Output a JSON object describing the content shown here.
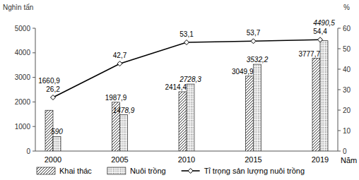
{
  "chart_data": {
    "type": "bar",
    "x_label": "Năm",
    "y_label": "Nghìn tấn",
    "y2_label": "%",
    "categories": [
      "2000",
      "2005",
      "2010",
      "2015",
      "2019"
    ],
    "ylim": [
      0,
      5000
    ],
    "yticks": [
      0,
      1000,
      2000,
      3000,
      4000,
      5000
    ],
    "y2lim": [
      0,
      60
    ],
    "y2ticks": [
      0,
      10,
      20,
      30,
      40,
      50,
      60
    ],
    "grid": false,
    "legend": "bottom",
    "data_labels": true,
    "series": [
      {
        "name": "Khai thác",
        "type": "bar",
        "color": "#000000",
        "values": [
          1660.9,
          1987.9,
          2414.4,
          3049.9,
          3777.7
        ],
        "value_labels": [
          "1660,9",
          "1987,9",
          "2414,4",
          "3049,9",
          "3777,7"
        ]
      },
      {
        "name": "Nuôi trồng",
        "type": "bar",
        "color": "#000000",
        "values": [
          590,
          1478.9,
          2728.3,
          3532.2,
          4490.5
        ],
        "value_labels": [
          "590",
          "1478,9",
          "2728,3",
          "3532,2",
          "4490,5"
        ]
      },
      {
        "name": "Tỉ trọng sản lượng nuôi trồng",
        "type": "line",
        "axis": "y2",
        "color": "#000000",
        "marker": "diamond",
        "values": [
          26.2,
          42.7,
          53.1,
          53.7,
          54.4
        ],
        "value_labels": [
          "26,2",
          "42,7",
          "53,1",
          "53,7",
          "54,4"
        ]
      }
    ]
  }
}
